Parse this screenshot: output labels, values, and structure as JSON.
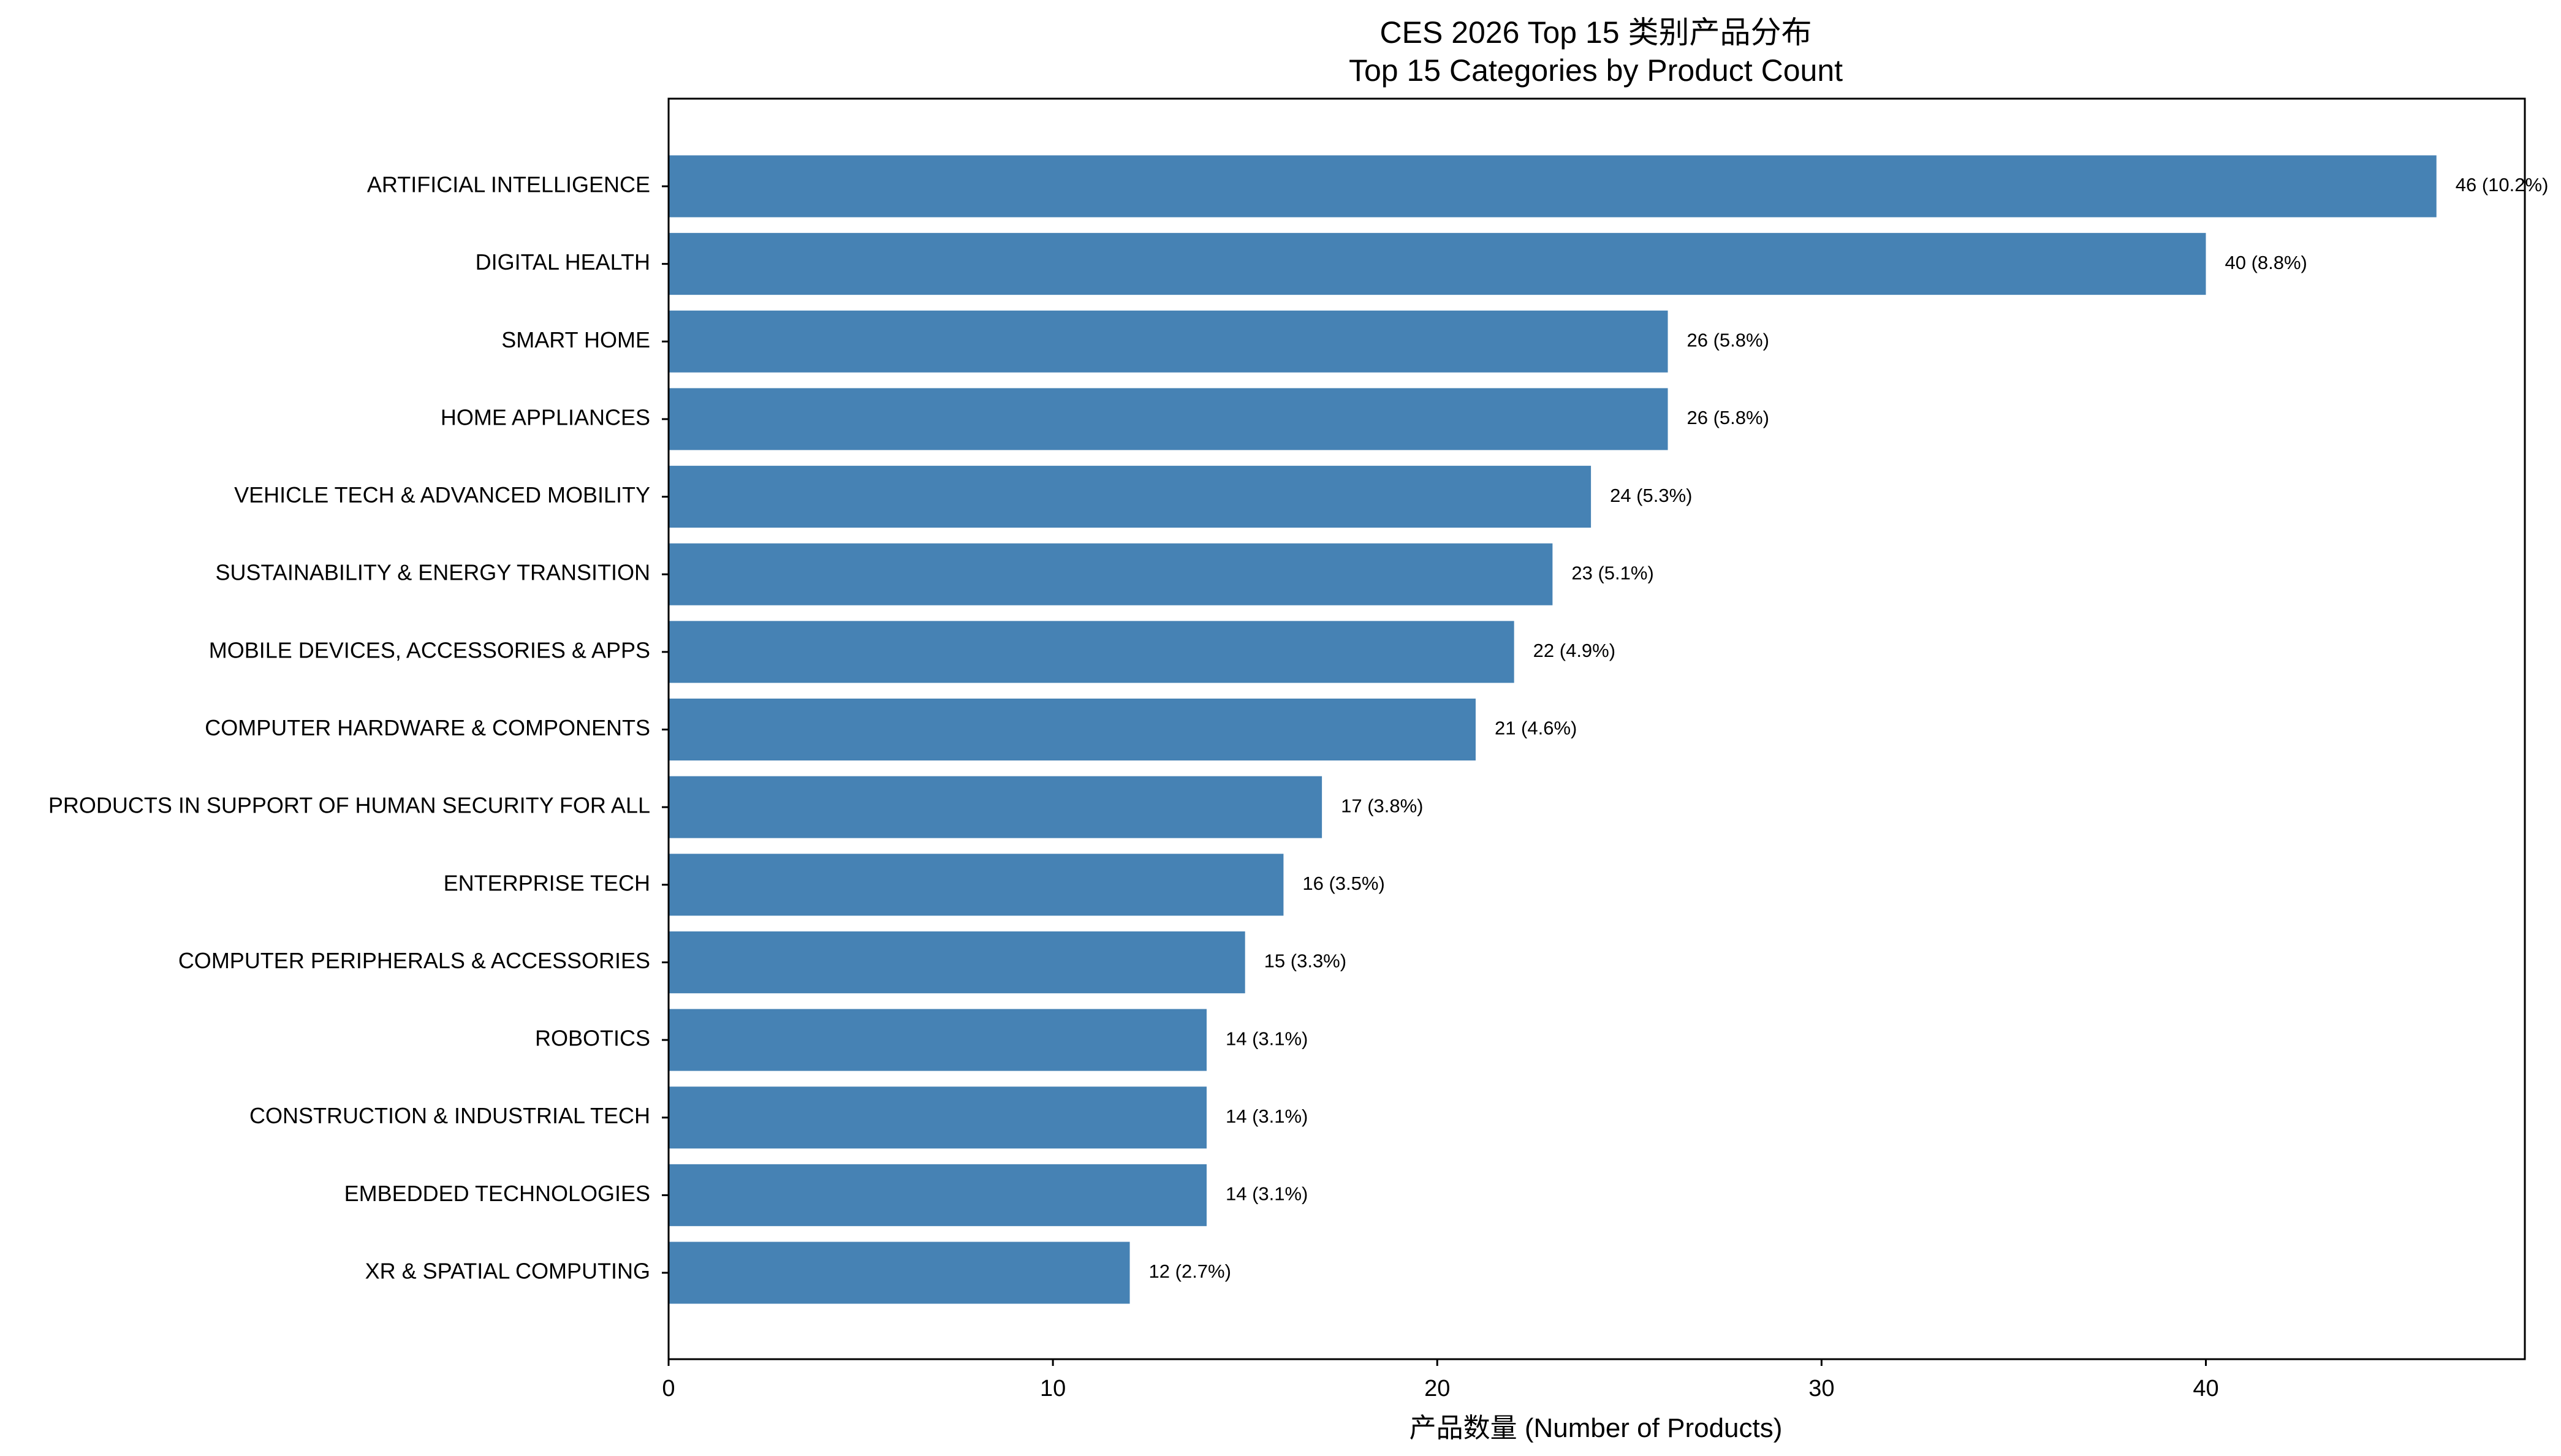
{
  "chart_data": {
    "type": "bar",
    "orientation": "horizontal",
    "title_line1": "CES 2026 Top 15 类别产品分布",
    "title_line2": "Top 15 Categories by Product Count",
    "xlabel": "产品数量 (Number of Products)",
    "ylabel": "",
    "xlim": [
      0,
      48.3
    ],
    "xticks": [
      0,
      10,
      20,
      30,
      40
    ],
    "grid": false,
    "bar_color": "#4682b4",
    "categories": [
      "ARTIFICIAL INTELLIGENCE",
      "DIGITAL HEALTH",
      "SMART HOME",
      "HOME APPLIANCES",
      "VEHICLE TECH & ADVANCED MOBILITY",
      "SUSTAINABILITY & ENERGY TRANSITION",
      "MOBILE DEVICES, ACCESSORIES & APPS",
      "COMPUTER HARDWARE & COMPONENTS",
      "PRODUCTS IN SUPPORT OF HUMAN SECURITY FOR ALL",
      "ENTERPRISE TECH",
      "COMPUTER PERIPHERALS & ACCESSORIES",
      "ROBOTICS",
      "CONSTRUCTION & INDUSTRIAL TECH",
      "EMBEDDED TECHNOLOGIES",
      "XR & SPATIAL COMPUTING"
    ],
    "values": [
      46,
      40,
      26,
      26,
      24,
      23,
      22,
      21,
      17,
      16,
      15,
      14,
      14,
      14,
      12
    ],
    "data_labels": [
      "46 (10.2%)",
      "40 (8.8%)",
      "26 (5.8%)",
      "26 (5.8%)",
      "24 (5.3%)",
      "23 (5.1%)",
      "22 (4.9%)",
      "21 (4.6%)",
      "17 (3.8%)",
      "16 (3.5%)",
      "15 (3.3%)",
      "14 (3.1%)",
      "14 (3.1%)",
      "14 (3.1%)",
      "12 (2.7%)"
    ]
  }
}
